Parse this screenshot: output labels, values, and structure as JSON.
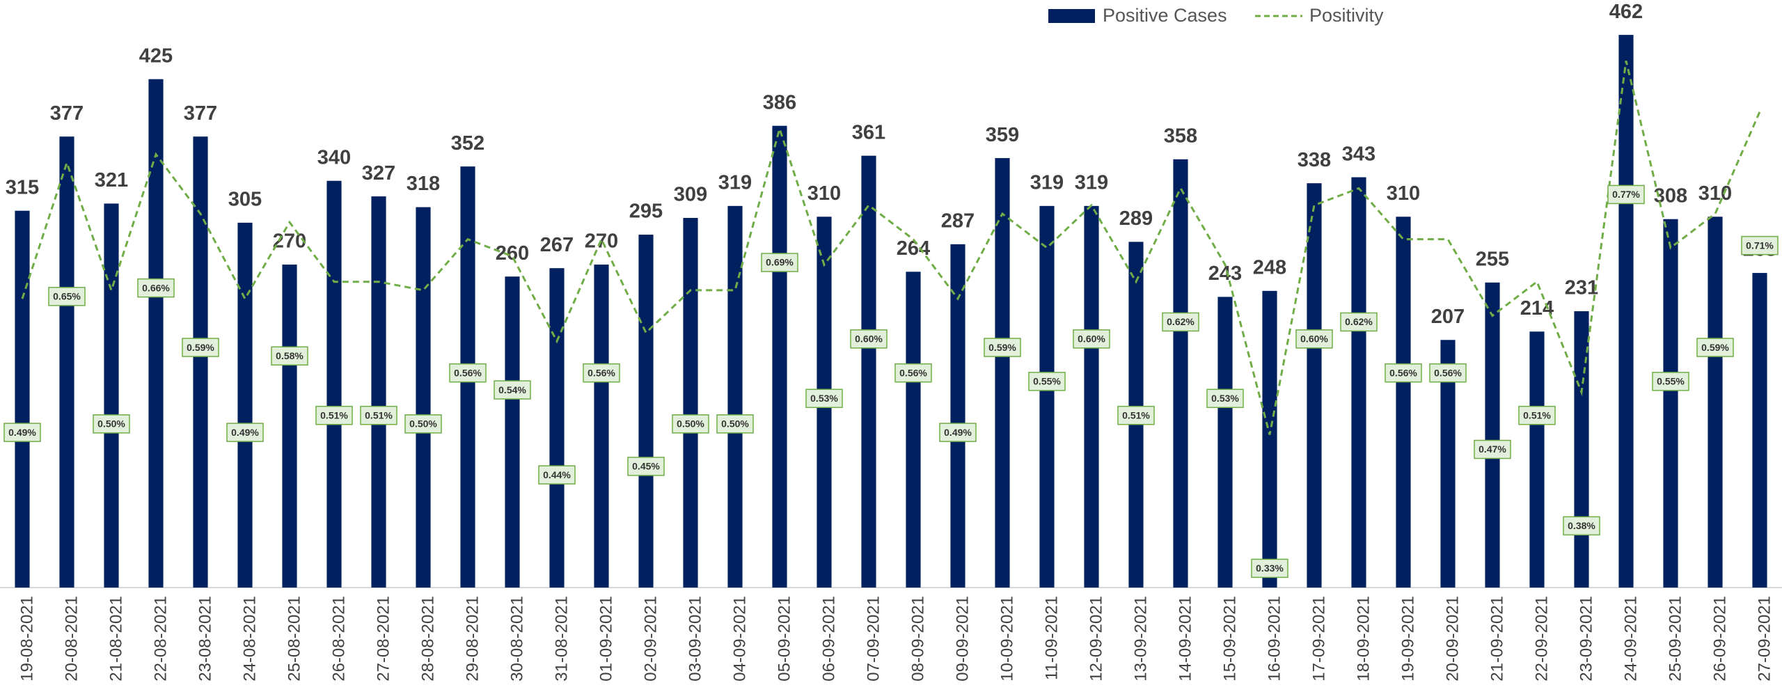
{
  "chart_data": {
    "type": "bar",
    "categories": [
      "19-08-2021",
      "20-08-2021",
      "21-08-2021",
      "22-08-2021",
      "23-08-2021",
      "24-08-2021",
      "25-08-2021",
      "26-08-2021",
      "27-08-2021",
      "28-08-2021",
      "29-08-2021",
      "30-08-2021",
      "31-08-2021",
      "01-09-2021",
      "02-09-2021",
      "03-09-2021",
      "04-09-2021",
      "05-09-2021",
      "06-09-2021",
      "07-09-2021",
      "08-09-2021",
      "09-09-2021",
      "10-09-2021",
      "11-09-2021",
      "12-09-2021",
      "13-09-2021",
      "14-09-2021",
      "15-09-2021",
      "16-09-2021",
      "17-09-2021",
      "18-09-2021",
      "19-09-2021",
      "20-09-2021",
      "21-09-2021",
      "22-09-2021",
      "23-09-2021",
      "24-09-2021",
      "25-09-2021",
      "26-09-2021",
      "27-09-2021"
    ],
    "series": [
      {
        "name": "Positive Cases",
        "color": "#002060",
        "type": "bar",
        "values": [
          315,
          377,
          321,
          425,
          377,
          305,
          270,
          340,
          327,
          318,
          352,
          260,
          267,
          270,
          295,
          309,
          319,
          386,
          310,
          361,
          264,
          287,
          359,
          319,
          319,
          289,
          358,
          243,
          248,
          338,
          343,
          310,
          207,
          255,
          214,
          231,
          462,
          308,
          310,
          263
        ]
      },
      {
        "name": "Positivity",
        "color": "#70ad47",
        "type": "line",
        "axis": "y2",
        "values": [
          0.49,
          0.65,
          0.5,
          0.66,
          0.59,
          0.49,
          0.58,
          0.51,
          0.51,
          0.5,
          0.56,
          0.54,
          0.44,
          0.56,
          0.45,
          0.5,
          0.5,
          0.69,
          0.53,
          0.6,
          0.56,
          0.49,
          0.59,
          0.55,
          0.6,
          0.51,
          0.62,
          0.53,
          0.33,
          0.6,
          0.62,
          0.56,
          0.56,
          0.47,
          0.51,
          0.38,
          0.77,
          0.55,
          0.59,
          0.71
        ],
        "value_labels": [
          "0.49%",
          "0.65%",
          "0.50%",
          "0.66%",
          "0.59%",
          "0.49%",
          "0.58%",
          "0.51%",
          "0.51%",
          "0.50%",
          "0.56%",
          "0.54%",
          "0.44%",
          "0.56%",
          "0.45%",
          "0.50%",
          "0.50%",
          "0.69%",
          "0.53%",
          "0.60%",
          "0.56%",
          "0.49%",
          "0.59%",
          "0.55%",
          "0.60%",
          "0.51%",
          "0.62%",
          "0.53%",
          "0.33%",
          "0.60%",
          "0.62%",
          "0.56%",
          "0.56%",
          "0.47%",
          "0.51%",
          "0.38%",
          "0.77%",
          "0.55%",
          "0.59%",
          "0.71%"
        ]
      }
    ],
    "ylim": [
      0,
      490
    ],
    "y2lim": [
      0.15,
      0.84
    ],
    "legend": "top"
  }
}
